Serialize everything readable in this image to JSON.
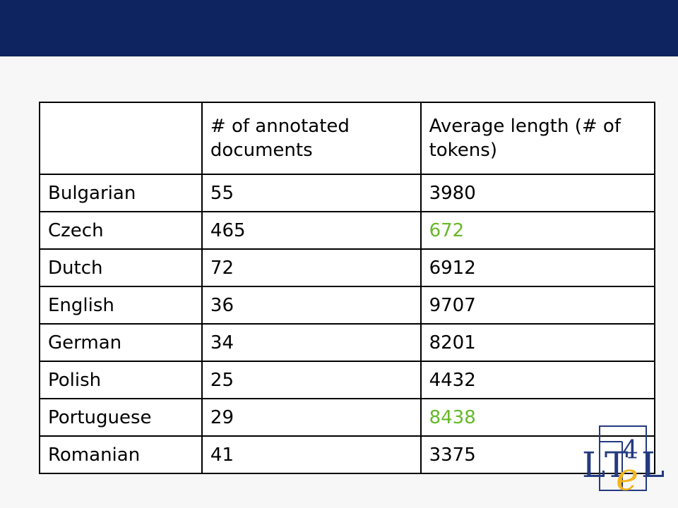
{
  "table": {
    "headers": [
      "",
      "# of annotated documents",
      "Average length (# of tokens)"
    ],
    "rows": [
      {
        "language": "Bulgarian",
        "documents": "55",
        "avg_length": "3980"
      },
      {
        "language": "Czech",
        "documents": "465",
        "avg_length": "672"
      },
      {
        "language": "Dutch",
        "documents": "72",
        "avg_length": "6912"
      },
      {
        "language": "English",
        "documents": "36",
        "avg_length": "9707"
      },
      {
        "language": "German",
        "documents": "34",
        "avg_length": "8201"
      },
      {
        "language": "Polish",
        "documents": "25",
        "avg_length": "4432"
      },
      {
        "language": "Portuguese",
        "documents": "29",
        "avg_length": "8438"
      },
      {
        "language": "Romanian",
        "documents": "41",
        "avg_length": "3375"
      }
    ]
  },
  "colors": {
    "header_band": "#0d2461",
    "highlight": "#66b82a",
    "logo_blue": "#243a80",
    "logo_gold": "#f2b51c"
  },
  "logo": {
    "text": "LT4eL"
  }
}
